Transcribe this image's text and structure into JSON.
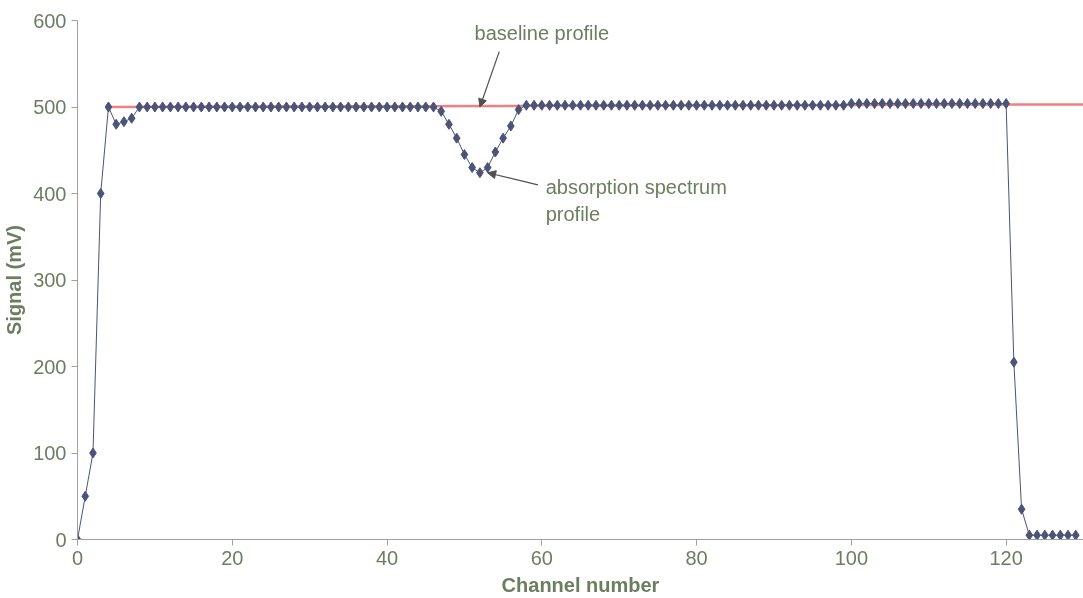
{
  "chart_data": {
    "type": "line",
    "xlabel": "Channel number",
    "ylabel": "Signal (mV)",
    "xlim": [
      0,
      130
    ],
    "ylim": [
      0,
      600
    ],
    "xticks": [
      0,
      20,
      40,
      60,
      80,
      100,
      120
    ],
    "yticks": [
      0,
      100,
      200,
      300,
      400,
      500,
      600
    ],
    "grid": false,
    "marker": "diamond",
    "series": [
      {
        "marker": "none",
        "color": "#f08080",
        "x": [
          4,
          130
        ],
        "values": [
          500,
          503
        ]
      },
      {
        "color": "#4a5478",
        "x": [
          0,
          1,
          2,
          3,
          4,
          5,
          6,
          7,
          8,
          9,
          10,
          11,
          12,
          13,
          14,
          15,
          16,
          17,
          18,
          19,
          20,
          21,
          22,
          23,
          24,
          25,
          26,
          27,
          28,
          29,
          30,
          31,
          32,
          33,
          34,
          35,
          36,
          37,
          38,
          39,
          40,
          41,
          42,
          43,
          44,
          45,
          46,
          47,
          48,
          49,
          50,
          51,
          52,
          53,
          54,
          55,
          56,
          57,
          58,
          59,
          60,
          61,
          62,
          63,
          64,
          65,
          66,
          67,
          68,
          69,
          70,
          71,
          72,
          73,
          74,
          75,
          76,
          77,
          78,
          79,
          80,
          81,
          82,
          83,
          84,
          85,
          86,
          87,
          88,
          89,
          90,
          91,
          92,
          93,
          94,
          95,
          96,
          97,
          98,
          99,
          100,
          101,
          102,
          103,
          104,
          105,
          106,
          107,
          108,
          109,
          110,
          111,
          112,
          113,
          114,
          115,
          116,
          117,
          118,
          119,
          120,
          121,
          122,
          123,
          124,
          125,
          126,
          127,
          128,
          129
        ],
        "values": [
          0,
          50,
          100,
          400,
          500,
          480,
          483,
          487,
          500,
          500,
          500,
          500,
          500,
          500,
          500,
          500,
          500,
          500,
          500,
          500,
          500,
          500,
          500,
          500,
          500,
          500,
          500,
          500,
          500,
          500,
          500,
          500,
          500,
          500,
          500,
          500,
          500,
          500,
          500,
          500,
          500,
          500,
          500,
          500,
          500,
          500,
          500,
          495,
          480,
          464,
          445,
          430,
          424,
          430,
          448,
          464,
          478,
          497,
          502,
          502,
          502,
          502,
          502,
          502,
          502,
          502,
          502,
          502,
          502,
          502,
          502,
          502,
          502,
          502,
          502,
          502,
          502,
          502,
          502,
          502,
          502,
          502,
          502,
          502,
          502,
          502,
          502,
          502,
          502,
          502,
          502,
          502,
          502,
          502,
          502,
          502,
          502,
          502,
          502,
          502,
          504,
          504,
          504,
          504,
          504,
          504,
          504,
          504,
          504,
          504,
          504,
          504,
          504,
          504,
          504,
          504,
          504,
          504,
          504,
          504,
          504,
          205,
          35,
          5,
          5,
          5,
          5,
          5,
          5,
          5
        ]
      }
    ],
    "annotations": [
      {
        "text": "baseline profile",
        "x": 52,
        "y": 500
      },
      {
        "text": "absorption spectrum\nprofile",
        "x": 53,
        "y": 424
      }
    ]
  }
}
